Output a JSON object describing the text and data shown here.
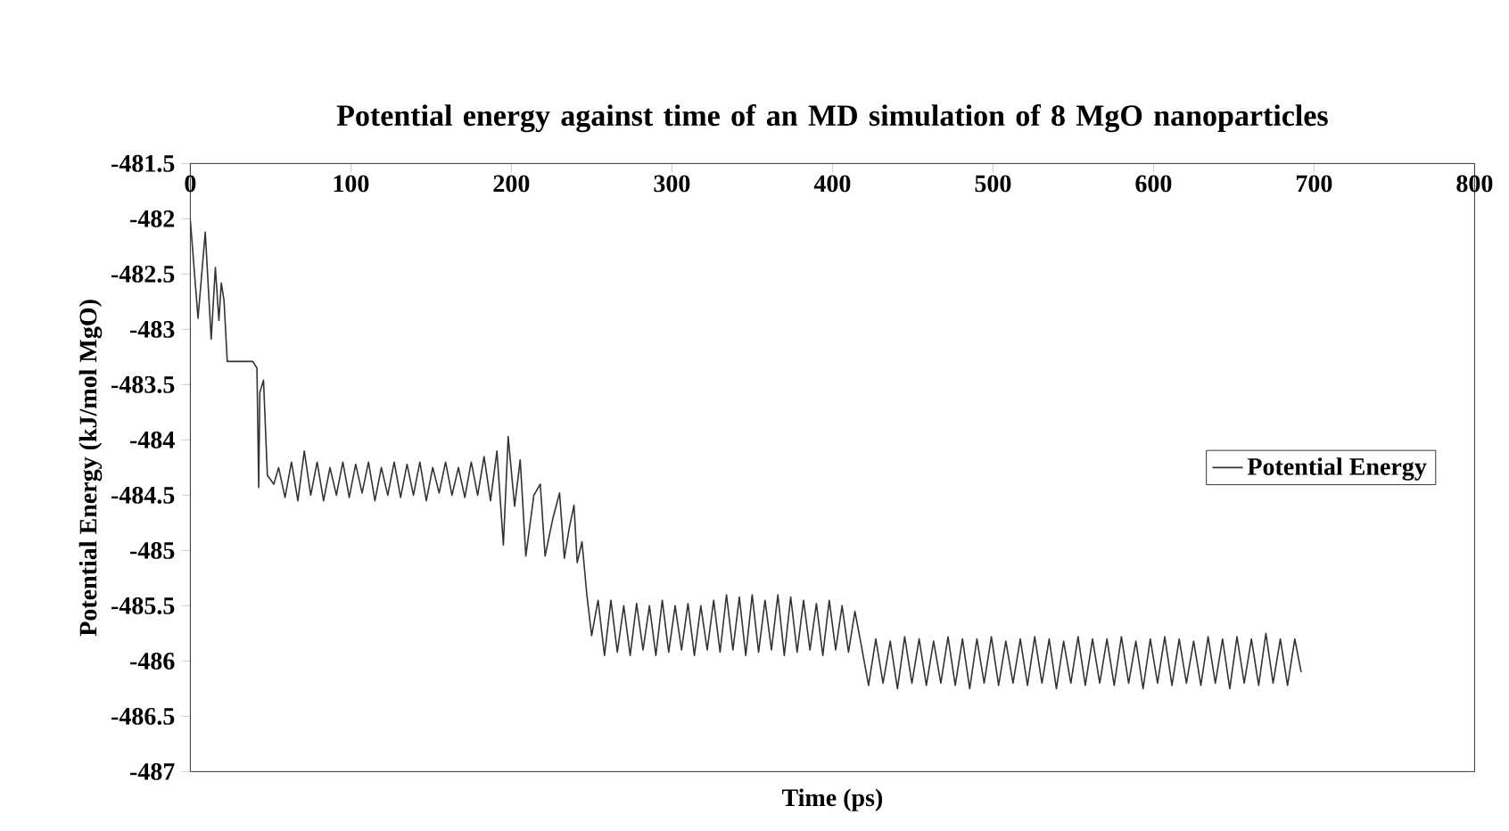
{
  "chart_data": {
    "type": "line",
    "title": "Potential energy against time of an MD simulation of 8 MgO nanoparticles",
    "xlabel": "Time (ps)",
    "ylabel": "Potential Energy (kJ/mol MgO)",
    "xlim": [
      0,
      800
    ],
    "xticks": [
      0,
      100,
      200,
      300,
      400,
      500,
      600,
      700,
      800
    ],
    "ylim": [
      -487,
      -481.5
    ],
    "yticks": [
      -487,
      -486.5,
      -486,
      -485.5,
      -485,
      -484.5,
      -484,
      -483.5,
      -483,
      -482.5,
      -482,
      -481.5
    ],
    "legend": "right",
    "grid": false,
    "marker": "none",
    "line_style": "solid",
    "series": [
      {
        "name": "Potential Energy",
        "color": "#333333",
        "x": [
          0,
          4.8,
          9.3,
          13,
          15.6,
          17.8,
          19.3,
          21,
          23,
          38.9,
          41.5,
          42.6,
          43.3,
          45.6,
          48,
          52,
          55,
          59,
          63,
          67,
          71,
          75,
          79,
          83,
          87,
          91,
          95,
          99,
          103,
          107,
          111,
          115,
          119,
          123,
          127,
          131,
          135,
          139,
          143,
          147,
          151,
          155,
          159,
          163,
          167,
          171,
          175,
          179,
          183,
          187,
          191,
          195,
          198,
          202,
          205.5,
          209,
          214,
          218,
          221,
          226,
          230,
          233,
          236,
          239,
          241,
          244,
          247,
          250,
          254,
          258,
          262,
          266,
          270,
          274,
          278,
          282,
          286,
          290,
          294,
          298,
          302,
          306,
          310,
          314,
          318,
          322,
          326,
          330,
          334,
          338,
          342,
          346,
          350,
          354,
          358,
          362,
          366,
          370,
          374,
          378,
          382,
          386,
          390,
          394,
          398,
          402,
          406,
          410,
          414,
          418,
          422.5,
          427,
          431.5,
          436,
          440.5,
          445,
          449.5,
          454,
          458.5,
          463,
          467.5,
          472,
          476.5,
          481,
          485.5,
          490,
          494.5,
          499,
          503.5,
          508,
          512.5,
          517,
          521.5,
          526,
          530.5,
          535,
          539.5,
          544,
          548.5,
          553,
          557.5,
          562,
          566.5,
          571,
          575.5,
          580,
          584.5,
          589,
          593.5,
          598,
          602.5,
          607,
          611.5,
          616,
          620.5,
          625,
          629.5,
          634,
          638.5,
          643,
          647.5,
          652,
          656.5,
          661,
          665.5,
          670,
          674.5,
          679,
          683.5,
          688,
          692
        ],
        "values": [
          -482.01,
          -482.9,
          -482.12,
          -483.09,
          -482.44,
          -482.92,
          -482.58,
          -482.74,
          -483.29,
          -483.29,
          -483.35,
          -484.43,
          -483.57,
          -483.46,
          -484.32,
          -484.4,
          -484.25,
          -484.52,
          -484.2,
          -484.55,
          -484.1,
          -484.5,
          -484.2,
          -484.55,
          -484.25,
          -484.5,
          -484.2,
          -484.52,
          -484.22,
          -484.48,
          -484.2,
          -484.55,
          -484.25,
          -484.5,
          -484.2,
          -484.52,
          -484.22,
          -484.5,
          -484.2,
          -484.55,
          -484.25,
          -484.48,
          -484.2,
          -484.5,
          -484.25,
          -484.52,
          -484.2,
          -484.5,
          -484.15,
          -484.55,
          -484.1,
          -484.95,
          -483.97,
          -484.6,
          -484.18,
          -485.05,
          -484.5,
          -484.4,
          -485.05,
          -484.7,
          -484.48,
          -485.07,
          -484.8,
          -484.59,
          -485.11,
          -484.92,
          -485.4,
          -485.77,
          -485.45,
          -485.95,
          -485.45,
          -485.92,
          -485.5,
          -485.95,
          -485.48,
          -485.9,
          -485.5,
          -485.95,
          -485.45,
          -485.92,
          -485.5,
          -485.9,
          -485.48,
          -485.95,
          -485.5,
          -485.9,
          -485.45,
          -485.92,
          -485.4,
          -485.9,
          -485.42,
          -485.95,
          -485.4,
          -485.92,
          -485.45,
          -485.9,
          -485.4,
          -485.95,
          -485.42,
          -485.92,
          -485.45,
          -485.9,
          -485.48,
          -485.95,
          -485.45,
          -485.9,
          -485.5,
          -485.92,
          -485.55,
          -485.86,
          -486.22,
          -485.8,
          -486.2,
          -485.82,
          -486.25,
          -485.78,
          -486.2,
          -485.8,
          -486.22,
          -485.82,
          -486.2,
          -485.78,
          -486.22,
          -485.8,
          -486.25,
          -485.8,
          -486.2,
          -485.78,
          -486.22,
          -485.82,
          -486.2,
          -485.8,
          -486.22,
          -485.78,
          -486.2,
          -485.8,
          -486.25,
          -485.82,
          -486.2,
          -485.78,
          -486.22,
          -485.8,
          -486.2,
          -485.8,
          -486.22,
          -485.78,
          -486.2,
          -485.82,
          -486.25,
          -485.8,
          -486.2,
          -485.78,
          -486.22,
          -485.8,
          -486.2,
          -485.82,
          -486.22,
          -485.78,
          -486.2,
          -485.8,
          -486.25,
          -485.78,
          -486.2,
          -485.8,
          -486.22,
          -485.75,
          -486.2,
          -485.8,
          -486.22,
          -485.8,
          -486.1
        ]
      }
    ]
  }
}
